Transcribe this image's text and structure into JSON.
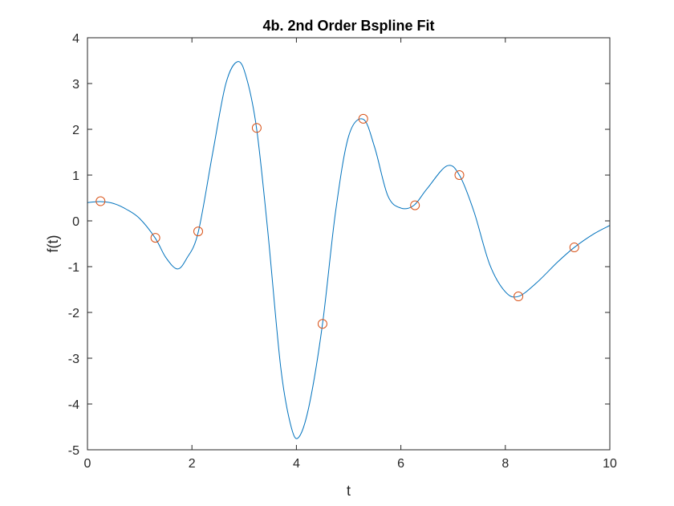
{
  "chart_data": {
    "type": "line",
    "title": "4b. 2nd Order Bspline Fit",
    "xlabel": "t",
    "ylabel": "f(t)",
    "xlim": [
      0,
      10
    ],
    "ylim": [
      -5,
      4
    ],
    "xticks": [
      0,
      2,
      4,
      6,
      8,
      10
    ],
    "yticks": [
      -5,
      -4,
      -3,
      -2,
      -1,
      0,
      1,
      2,
      3,
      4
    ],
    "grid": false,
    "legend": "none",
    "colors": {
      "curve": "#0072BD",
      "points": "#D95319",
      "axes": "#262626"
    },
    "series": [
      {
        "kind": "line",
        "x": [
          0,
          0.25,
          0.5,
          0.75,
          1.0,
          1.3,
          1.5,
          1.72,
          1.9,
          2.12,
          2.4,
          2.65,
          2.88,
          3.05,
          3.24,
          3.45,
          3.7,
          3.9,
          4.05,
          4.25,
          4.5,
          4.75,
          5.0,
          5.28,
          5.5,
          5.75,
          6.0,
          6.25,
          6.5,
          6.88,
          7.12,
          7.4,
          7.7,
          8.0,
          8.25,
          8.6,
          9.0,
          9.32,
          9.7,
          10.0
        ],
        "y": [
          0.4,
          0.42,
          0.38,
          0.25,
          0.05,
          -0.38,
          -0.8,
          -1.05,
          -0.82,
          -0.25,
          1.5,
          3.0,
          3.48,
          3.1,
          2.0,
          -0.2,
          -3.2,
          -4.5,
          -4.72,
          -4.0,
          -2.25,
          0.2,
          1.85,
          2.22,
          1.6,
          0.55,
          0.28,
          0.34,
          0.7,
          1.2,
          1.0,
          0.2,
          -0.95,
          -1.55,
          -1.65,
          -1.35,
          -0.9,
          -0.58,
          -0.28,
          -0.1
        ]
      },
      {
        "kind": "scatter",
        "x": [
          0.25,
          1.3,
          2.12,
          3.24,
          4.5,
          5.28,
          6.27,
          7.12,
          8.25,
          9.32
        ],
        "y": [
          0.43,
          -0.37,
          -0.23,
          2.03,
          -2.25,
          2.23,
          0.34,
          1.0,
          -1.65,
          -0.58
        ]
      }
    ]
  }
}
